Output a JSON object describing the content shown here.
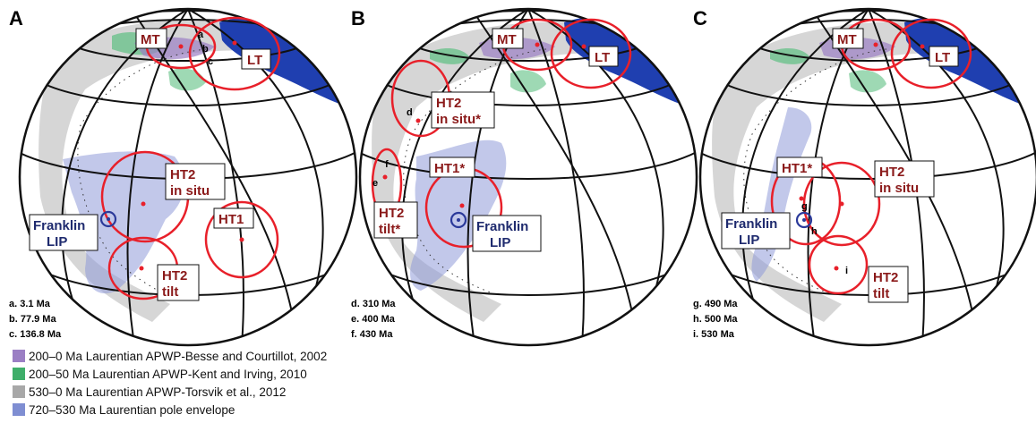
{
  "colors": {
    "red_circle": "#e8202a",
    "franklin_blue": "#2b3a9a",
    "continent": "#1f3fb0",
    "grid": "#111111",
    "label_text": "#8b1a1a"
  },
  "panels": [
    {
      "letter": "A",
      "labels": {
        "mt": "MT",
        "lt": "LT",
        "ht2_insitu_l1": "HT2",
        "ht2_insitu_l2": "in situ",
        "ht1": "HT1",
        "ht2_tilt_l1": "HT2",
        "ht2_tilt_l2": "tilt",
        "franklin_l1": "Franklin",
        "franklin_l2": "LIP"
      },
      "points": [
        "a",
        "b",
        "c"
      ],
      "ages": [
        "a. 3.1 Ma",
        "b. 77.9 Ma",
        "c. 136.8 Ma"
      ]
    },
    {
      "letter": "B",
      "labels": {
        "mt": "MT",
        "lt": "LT",
        "ht2_insitu_l1": "HT2",
        "ht2_insitu_l2": "in situ*",
        "ht1": "HT1*",
        "ht2_tilt_l1": "HT2",
        "ht2_tilt_l2": "tilt*",
        "franklin_l1": "Franklin",
        "franklin_l2": "LIP"
      },
      "points": [
        "d",
        "e",
        "f"
      ],
      "ages": [
        "d. 310 Ma",
        "e. 400 Ma",
        "f. 430 Ma"
      ]
    },
    {
      "letter": "C",
      "labels": {
        "mt": "MT",
        "lt": "LT",
        "ht2_insitu_l1": "HT2",
        "ht2_insitu_l2": "in situ",
        "ht1": "HT1*",
        "ht2_tilt_l1": "HT2",
        "ht2_tilt_l2": "tilt",
        "franklin_l1": "Franklin",
        "franklin_l2": "LIP"
      },
      "points": [
        "g",
        "h",
        "i"
      ],
      "ages": [
        "g. 490 Ma",
        "h. 500 Ma",
        "i. 530 Ma"
      ]
    }
  ],
  "legend": [
    {
      "label": "200–0 Ma Laurentian APWP-Besse and Courtillot, 2002",
      "color": "#9b7fc4"
    },
    {
      "label": "200–50 Ma Laurentian APWP-Kent and Irving, 2010",
      "color": "#3fae6a"
    },
    {
      "label": "530–0 Ma Laurentian APWP-Torsvik et al., 2012",
      "color": "#a8a8a8"
    },
    {
      "label": "720–530 Ma Laurentian pole envelope",
      "color": "#7f8ed2"
    }
  ]
}
